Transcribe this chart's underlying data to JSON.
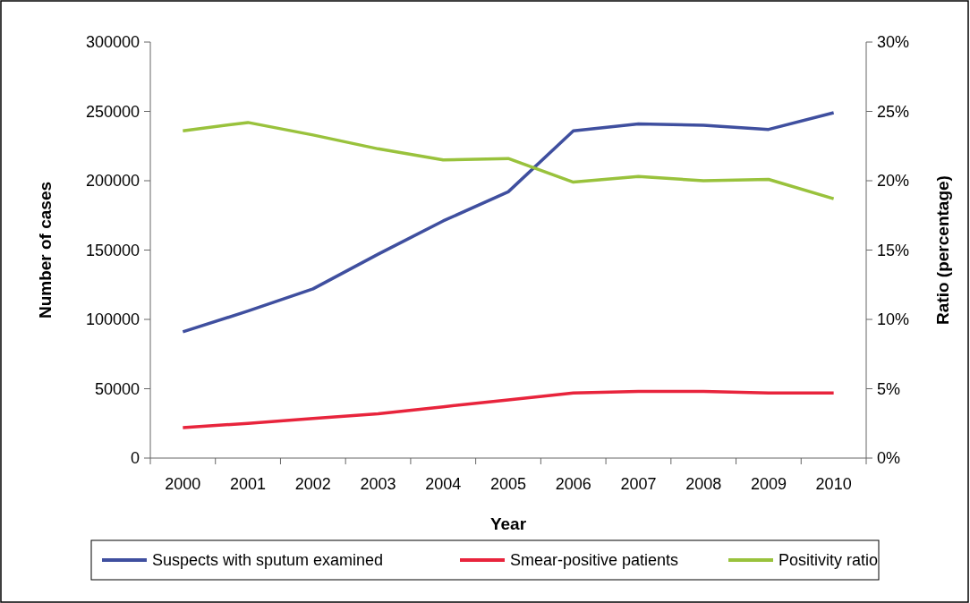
{
  "chart_data": {
    "type": "line",
    "xlabel": "Year",
    "ylabel": "Number of cases",
    "y2label": "Ratio (percentage)",
    "categories": [
      "2000",
      "2001",
      "2002",
      "2003",
      "2004",
      "2005",
      "2006",
      "2007",
      "2008",
      "2009",
      "2010"
    ],
    "ylim": [
      0,
      300000
    ],
    "yticks": [
      0,
      50000,
      100000,
      150000,
      200000,
      250000,
      300000
    ],
    "y2lim": [
      0,
      30
    ],
    "y2ticks": [
      {
        "value": 0,
        "label": "0%"
      },
      {
        "value": 5,
        "label": "5%"
      },
      {
        "value": 10,
        "label": "10%"
      },
      {
        "value": 15,
        "label": "15%"
      },
      {
        "value": 20,
        "label": "20%"
      },
      {
        "value": 25,
        "label": "25%"
      },
      {
        "value": 30,
        "label": "30%"
      }
    ],
    "series": [
      {
        "name": "Suspects with sputum examined",
        "color": "#3f4f9f",
        "values": [
          91000,
          106000,
          122000,
          147000,
          171000,
          192000,
          236000,
          241000,
          240000,
          237000,
          249000
        ]
      },
      {
        "name": "Smear-positive patients",
        "color": "#e8243c",
        "values": [
          22000,
          25000,
          28500,
          32000,
          37000,
          42000,
          47000,
          48000,
          48000,
          47000,
          47000
        ]
      },
      {
        "name": "Positivity ratio",
        "color": "#99c23c",
        "axis": "y2",
        "values": [
          23.6,
          24.2,
          23.3,
          22.3,
          21.5,
          21.6,
          19.9,
          20.3,
          20,
          20.1,
          18.7
        ]
      }
    ],
    "legend": "bottom",
    "grid": false,
    "marker": "none",
    "line_style": "solid"
  }
}
